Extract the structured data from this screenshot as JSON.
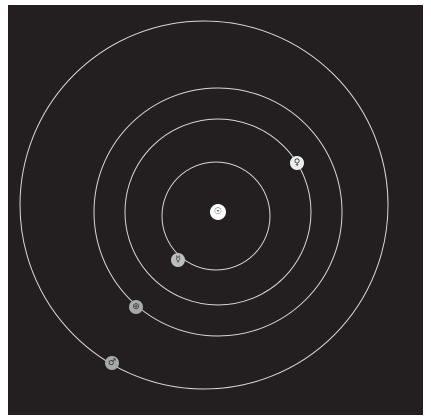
{
  "bodies": [
    {
      "symbol": "☉"
    },
    {
      "symbol": "☿"
    },
    {
      "symbol": "♀"
    },
    {
      "symbol": "⊕"
    },
    {
      "symbol": "♂"
    }
  ]
}
